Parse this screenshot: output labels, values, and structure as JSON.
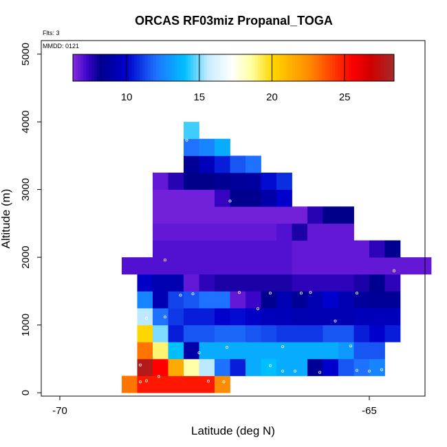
{
  "chart_data": {
    "type": "heatmap",
    "title": "ORCAS RF03miz Propanal_TOGA",
    "annotations": {
      "flights": "Flts: 3",
      "date": "MMDD: 0121"
    },
    "xlabel": "Latitude (deg N)",
    "ylabel": "Altitude (m)",
    "xlim": [
      -70.3,
      -64.1
    ],
    "ylim": [
      -50,
      5200
    ],
    "x_ticks": [
      {
        "value": -70,
        "label": "-70"
      },
      {
        "value": -65,
        "label": "-65"
      }
    ],
    "y_ticks": [
      {
        "value": 0,
        "label": "0"
      },
      {
        "value": 1000,
        "label": "1000"
      },
      {
        "value": 2000,
        "label": "2000"
      },
      {
        "value": 3000,
        "label": "3000"
      },
      {
        "value": 4000,
        "label": "4000"
      },
      {
        "value": 5000,
        "label": "5000"
      }
    ],
    "colorbar": {
      "range": [
        6.3,
        28.4
      ],
      "ticks": [
        {
          "value": 10,
          "label": "10"
        },
        {
          "value": 15,
          "label": "15"
        },
        {
          "value": 20,
          "label": "20"
        },
        {
          "value": 25,
          "label": "25"
        }
      ],
      "stops": [
        {
          "v": 6.3,
          "c": "#8a2be2"
        },
        {
          "v": 7.3,
          "c": "#3a05c8"
        },
        {
          "v": 8.2,
          "c": "#00008b"
        },
        {
          "v": 10.0,
          "c": "#0000cd"
        },
        {
          "v": 12.0,
          "c": "#1e72ff"
        },
        {
          "v": 14.0,
          "c": "#00bfff"
        },
        {
          "v": 15.6,
          "c": "#c8ecff"
        },
        {
          "v": 17.2,
          "c": "#ffffff"
        },
        {
          "v": 18.6,
          "c": "#ffffa0"
        },
        {
          "v": 20.0,
          "c": "#ffd700"
        },
        {
          "v": 22.5,
          "c": "#ff8c00"
        },
        {
          "v": 25.5,
          "c": "#ff0000"
        },
        {
          "v": 26.8,
          "c": "#d00000"
        },
        {
          "v": 28.4,
          "c": "#a52a2a"
        }
      ]
    },
    "cell_width_deg": 0.25,
    "cell_height_m": 250,
    "rows": [
      {
        "alt_bottom": 0,
        "lat_start": -69.0,
        "values": [
          23,
          25,
          25,
          25,
          25,
          25,
          22.5
        ]
      },
      {
        "alt_bottom": 250,
        "lat_start": -68.75,
        "values": [
          27.8,
          25.5,
          21.5,
          18.5,
          15.5,
          12,
          10.5,
          13.5,
          14,
          13.5,
          13.5,
          8.5,
          10,
          11.5,
          12,
          12.5
        ]
      },
      {
        "alt_bottom": 500,
        "lat_start": -68.75,
        "values": [
          23,
          19,
          14,
          9,
          13.5,
          13.5,
          13.5,
          13.5,
          13.5,
          13.5,
          13.5,
          13.5,
          13.5,
          13,
          11.5,
          11.5
        ]
      },
      {
        "alt_bottom": 750,
        "lat_start": -68.75,
        "values": [
          20,
          15,
          10.5,
          11.5,
          11.5,
          11.8,
          11.8,
          11.5,
          11.3,
          11,
          11,
          11,
          11.5,
          11.5,
          10.5,
          10,
          10.5
        ]
      },
      {
        "alt_bottom": 1000,
        "lat_start": -68.75,
        "values": [
          15.5,
          12,
          11,
          10.5,
          10.5,
          10,
          10.2,
          9.8,
          9.5,
          9.5,
          9.3,
          9.3,
          9.3,
          9.3,
          9.5,
          9.5,
          9.5
        ]
      },
      {
        "alt_bottom": 1250,
        "lat_start": -68.75,
        "values": [
          12.5,
          9.3,
          11.2,
          11.5,
          12,
          12,
          6.8,
          7.3,
          8.3,
          9.3,
          8.5,
          9.3,
          10,
          9.3,
          8.7,
          8.5,
          8.5
        ]
      },
      {
        "alt_bottom": 1500,
        "lat_start": -68.75,
        "values": [
          9.8,
          9.2,
          9.2,
          6.8,
          7.5,
          7.8,
          7.8,
          7.8,
          7.8,
          7.8,
          7.5,
          7.5,
          7.5,
          7.5,
          7.8,
          8.3,
          7.5
        ]
      },
      {
        "alt_bottom": 1750,
        "lat_start": -69.0,
        "values": [
          7.0,
          7.0,
          7.0,
          7.0,
          7.0,
          7.0,
          7.0,
          7.0,
          7.0,
          7.0,
          7.0,
          6.8,
          6.8,
          6.8,
          6.8,
          6.8,
          6.8,
          6.8,
          6.8,
          6.8
        ]
      },
      {
        "alt_bottom": 2000,
        "lat_start": -68.5,
        "values": [
          7.0,
          7.0,
          7.0,
          7.0,
          7.0,
          7.0,
          7.0,
          7.0,
          7.0,
          6.8,
          6.8,
          6.8,
          6.8,
          6.8,
          7.5,
          8.3
        ]
      },
      {
        "alt_bottom": 2250,
        "lat_start": -68.5,
        "values": [
          6.8,
          6.8,
          6.8,
          6.8,
          6.8,
          6.8,
          6.8,
          6.8,
          7.0,
          7.8,
          6.8,
          6.8,
          6.8
        ]
      },
      {
        "alt_bottom": 2500,
        "lat_start": -68.5,
        "values": [
          6.6,
          6.6,
          6.6,
          6.6,
          6.6,
          6.6,
          6.6,
          6.6,
          6.6,
          6.6,
          7.6,
          8.2,
          8.2
        ]
      },
      {
        "alt_bottom": 2750,
        "lat_start": -68.5,
        "values": [
          6.6,
          6.6,
          6.6,
          6.6,
          7.4,
          8.3,
          8.3,
          9.0,
          10.0
        ]
      },
      {
        "alt_bottom": 3000,
        "lat_start": -68.5,
        "values": [
          6.8,
          7.6,
          8.2,
          8.2,
          8.4,
          8.6,
          8.8,
          10.2,
          10.8
        ]
      },
      {
        "alt_bottom": 3250,
        "lat_start": -68.0,
        "values": [
          8.5,
          9.5,
          10.5,
          11.5,
          12
        ]
      },
      {
        "alt_bottom": 3500,
        "lat_start": -68.0,
        "values": [
          12,
          12.5,
          13.5
        ]
      },
      {
        "alt_bottom": 3750,
        "lat_start": -68.0,
        "values": [
          14.5
        ]
      }
    ],
    "sample_points": [
      [
        -68.7,
        160
      ],
      [
        -68.6,
        175
      ],
      [
        -68.4,
        240
      ],
      [
        -67.6,
        170
      ],
      [
        -67.35,
        160
      ],
      [
        -68.7,
        410
      ],
      [
        -66.6,
        400
      ],
      [
        -66.4,
        320
      ],
      [
        -66.2,
        320
      ],
      [
        -65.8,
        300
      ],
      [
        -65.2,
        330
      ],
      [
        -65.0,
        320
      ],
      [
        -64.8,
        340
      ],
      [
        -67.3,
        670
      ],
      [
        -66.4,
        680
      ],
      [
        -65.3,
        690
      ],
      [
        -68.6,
        1100
      ],
      [
        -68.3,
        1120
      ],
      [
        -66.8,
        1240
      ],
      [
        -68.05,
        1440
      ],
      [
        -67.85,
        1460
      ],
      [
        -67.1,
        1480
      ],
      [
        -66.6,
        1470
      ],
      [
        -66.1,
        1470
      ],
      [
        -65.95,
        1480
      ],
      [
        -65.2,
        1470
      ],
      [
        -65.55,
        1060
      ],
      [
        -68.3,
        1960
      ],
      [
        -67.25,
        2830
      ],
      [
        -67.95,
        3730
      ],
      [
        -64.6,
        1800
      ],
      [
        -67.75,
        590
      ]
    ]
  }
}
